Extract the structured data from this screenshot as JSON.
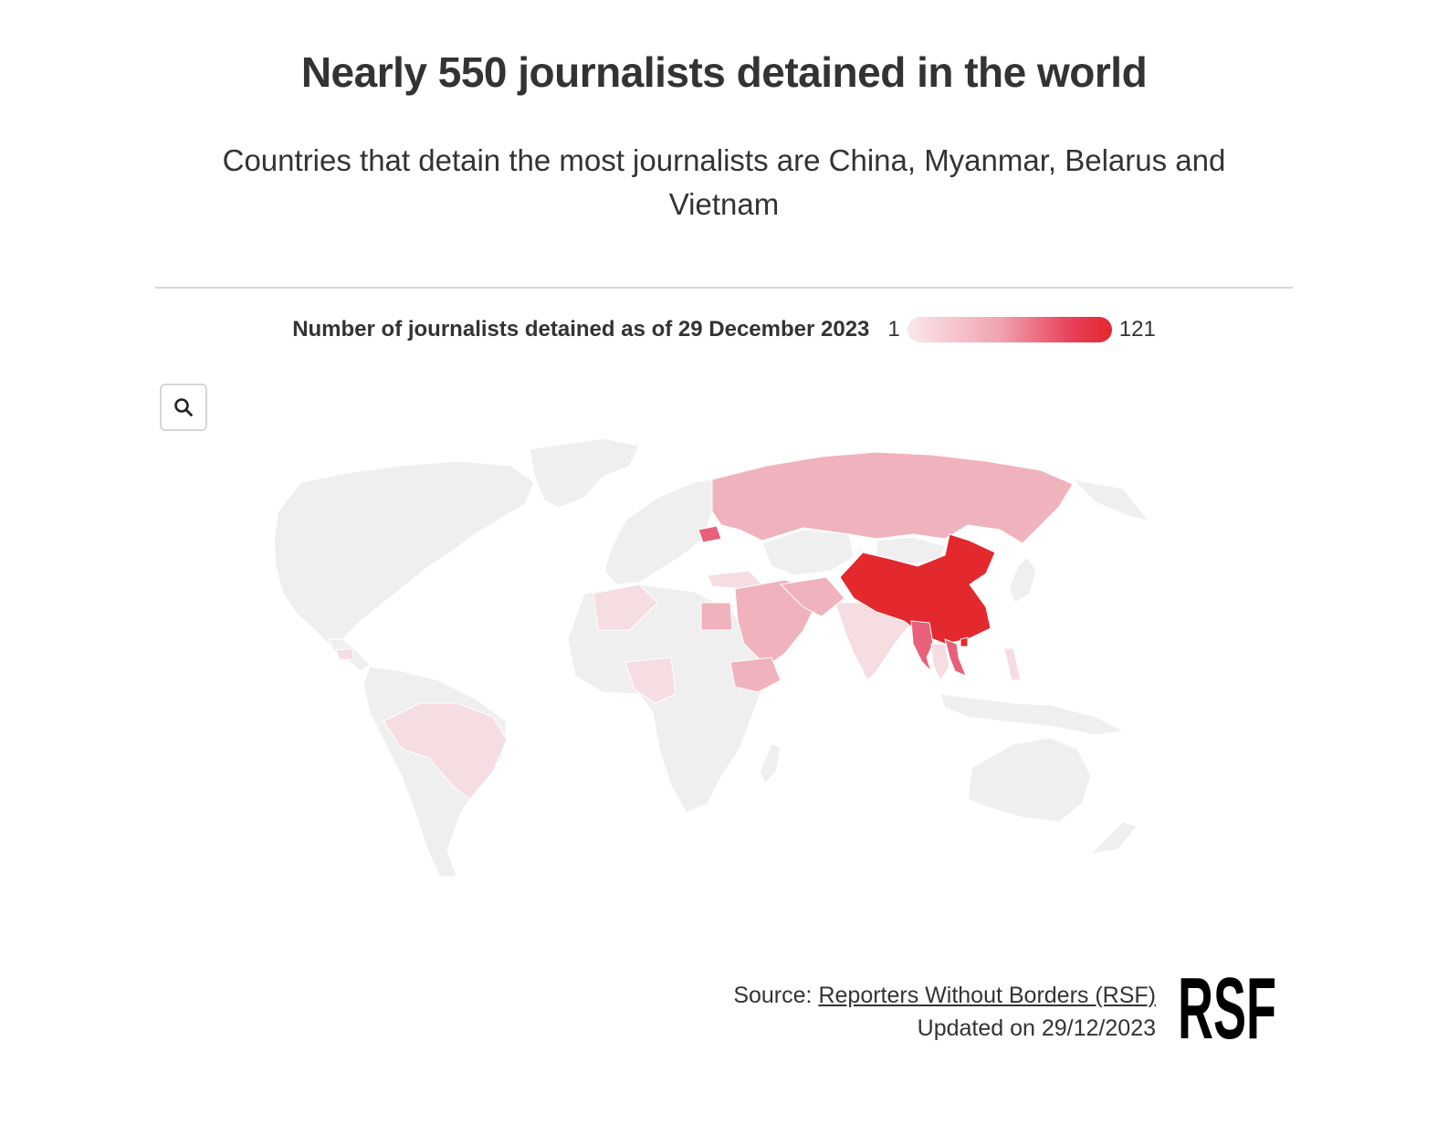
{
  "title": "Nearly 550 journalists detained in the world",
  "subtitle": "Countries that detain the most journalists are China, Myanmar, Belarus and Vietnam",
  "legend": {
    "title": "Number of journalists detained as of 29 December 2023",
    "min": "1",
    "max": "121",
    "color_min": "#fbe7ea",
    "color_max": "#e3282e"
  },
  "zoom_icon": "search-icon",
  "colors": {
    "no_data": "#efefef",
    "low": "#f6dde1",
    "mid_low": "#f0b3bd",
    "mid": "#e8607a",
    "high": "#e3282e"
  },
  "footer": {
    "source_label": "Source:",
    "source_link": "Reporters Without Borders (RSF)",
    "updated": "Updated on 29/12/2023"
  },
  "logo_text": "RSF"
}
